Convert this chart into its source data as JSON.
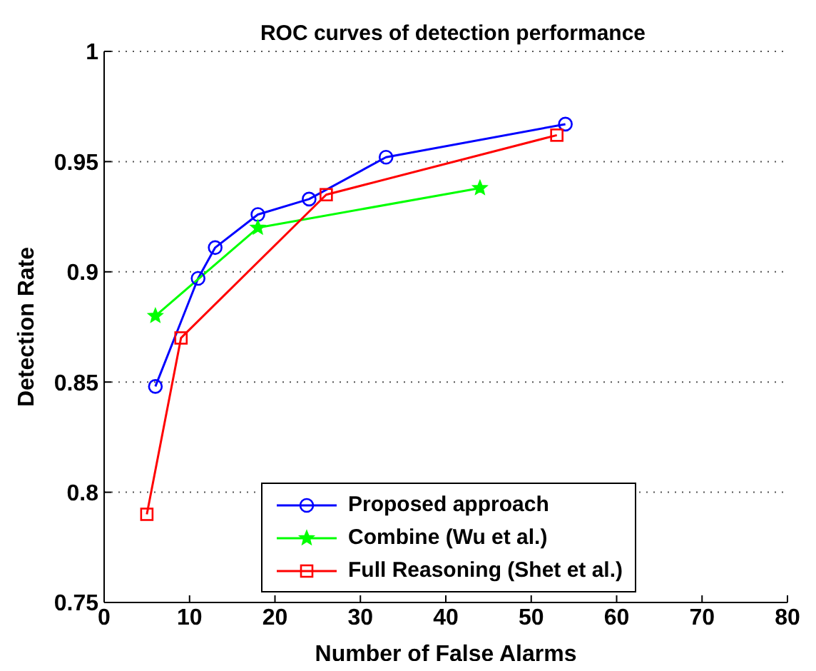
{
  "chart_data": {
    "type": "line",
    "title": "ROC curves of detection performance",
    "xlabel": "Number of False Alarms",
    "ylabel": "Detection Rate",
    "series": [
      {
        "name": "Proposed approach",
        "color": "#0000ff",
        "marker": "circle",
        "x": [
          6,
          11,
          13,
          18,
          24,
          33,
          54
        ],
        "values": [
          0.848,
          0.897,
          0.911,
          0.926,
          0.933,
          0.952,
          0.967
        ]
      },
      {
        "name": "Combine (Wu et al.)",
        "color": "#00ff00",
        "marker": "star",
        "x": [
          6,
          18,
          44
        ],
        "values": [
          0.88,
          0.92,
          0.938
        ]
      },
      {
        "name": "Full Reasoning (Shet et al.)",
        "color": "#ff0000",
        "marker": "square",
        "x": [
          5,
          9,
          26,
          53
        ],
        "values": [
          0.79,
          0.87,
          0.935,
          0.962
        ]
      }
    ],
    "xlim": [
      0,
      80
    ],
    "xticks": [
      0,
      10,
      20,
      30,
      40,
      50,
      60,
      70,
      80
    ],
    "ylim": [
      0.75,
      1
    ],
    "yticks": [
      0.75,
      0.8,
      0.85,
      0.9,
      0.95,
      1
    ],
    "grid": "y",
    "legend": "bottom",
    "line_style": "solid"
  }
}
